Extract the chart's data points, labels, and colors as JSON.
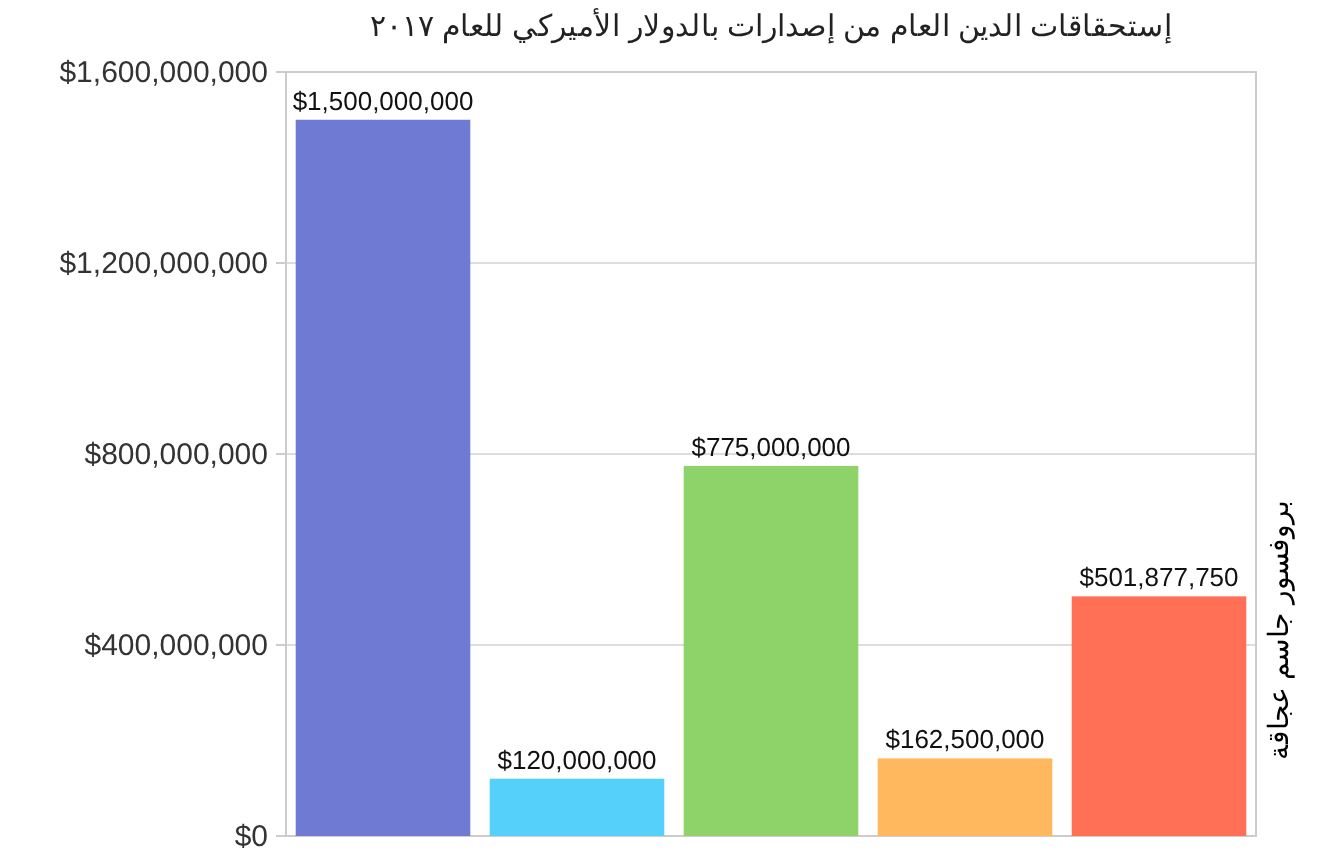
{
  "chart_data": {
    "type": "bar",
    "title": "إستحقاقات الدين العام من إصدارات بالدولار الأميركي للعام ٢٠١٧",
    "categories": [
      null,
      null,
      null,
      null,
      null
    ],
    "values": [
      1500000000,
      120000000,
      775000000,
      162500000,
      501877750
    ],
    "colors": [
      "#6f7bd3",
      "#55d0fb",
      "#8ed36a",
      "#ffb85e",
      "#ff7057"
    ],
    "value_labels": [
      "$1,500,000,000",
      "$120,000,000",
      "$775,000,000",
      "$162,500,000",
      "$501,877,750"
    ],
    "ylim": [
      0,
      1600000000
    ],
    "yticks": [
      {
        "value": 0,
        "label": "$0"
      },
      {
        "value": 400000000,
        "label": "$400,000,000"
      },
      {
        "value": 800000000,
        "label": "$800,000,000"
      },
      {
        "value": 1200000000,
        "label": "$1,200,000,000"
      },
      {
        "value": 1600000000,
        "label": "$1,600,000,000"
      }
    ],
    "grid": "y",
    "annotations": [
      "بروفسور جاسم عجاقة"
    ]
  }
}
